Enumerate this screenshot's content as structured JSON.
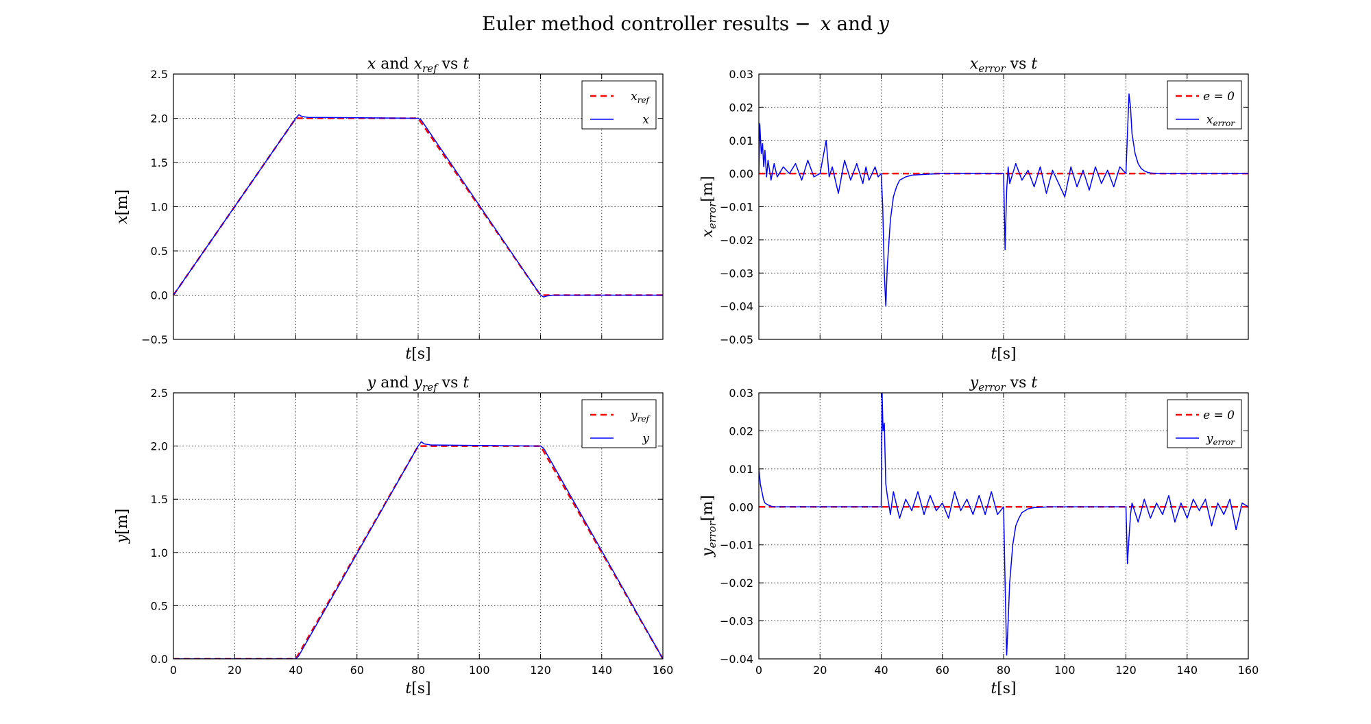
{
  "figure": {
    "suptitle_main": "Euler method controller results",
    "suptitle_dash": "−",
    "suptitle_var1": "x",
    "suptitle_and": "and",
    "suptitle_var2": "y"
  },
  "chart_data": [
    {
      "type": "line",
      "title": "x and x_ref vs t",
      "title_parts": {
        "v1": "x",
        "mid": "and",
        "v2": "x",
        "sub": "ref",
        "vs": "vs",
        "t": "t"
      },
      "xlabel": "t[s]",
      "xlabel_var": "t",
      "xlabel_unit": "[s]",
      "ylabel": "x[m]",
      "ylabel_var": "x",
      "ylabel_sub": "",
      "ylabel_unit": "[m]",
      "xlim": [
        0,
        160
      ],
      "ylim": [
        -0.5,
        2.5
      ],
      "xticks": [
        0,
        20,
        40,
        60,
        80,
        100,
        120,
        140,
        160
      ],
      "show_xticklabels": false,
      "yticks": [
        -0.5,
        0.0,
        0.5,
        1.0,
        1.5,
        2.0,
        2.5
      ],
      "ytick_labels": [
        "−0.5",
        "0.0",
        "0.5",
        "1.0",
        "1.5",
        "2.0",
        "2.5"
      ],
      "grid": true,
      "legend": "top-right",
      "series": [
        {
          "name": "x_ref",
          "legend_var": "x",
          "legend_sub": "ref",
          "style": "dashed",
          "color": "#ff0000",
          "x": [
            0,
            40,
            80,
            120,
            160
          ],
          "y": [
            0,
            2,
            2,
            0,
            0
          ]
        },
        {
          "name": "x",
          "legend_var": "x",
          "legend_sub": "",
          "style": "solid",
          "color": "#0000ff",
          "x": [
            0,
            40,
            41,
            42,
            44,
            80,
            81,
            120,
            121,
            122,
            124,
            160
          ],
          "y": [
            0,
            2.0,
            2.04,
            2.02,
            2.01,
            2.0,
            1.98,
            0.0,
            -0.02,
            -0.01,
            0.0,
            0.0
          ]
        }
      ]
    },
    {
      "type": "line",
      "title": "x_error vs t",
      "title_parts": {
        "v1": "x",
        "sub": "error",
        "vs": "vs",
        "t": "t"
      },
      "xlabel": "t[s]",
      "xlabel_var": "t",
      "xlabel_unit": "[s]",
      "ylabel": "x_error[m]",
      "ylabel_var": "x",
      "ylabel_sub": "error",
      "ylabel_unit": "[m]",
      "xlim": [
        0,
        160
      ],
      "ylim": [
        -0.05,
        0.03
      ],
      "xticks": [
        0,
        20,
        40,
        60,
        80,
        100,
        120,
        140,
        160
      ],
      "show_xticklabels": false,
      "yticks": [
        -0.05,
        -0.04,
        -0.03,
        -0.02,
        -0.01,
        0.0,
        0.01,
        0.02,
        0.03
      ],
      "ytick_labels": [
        "−0.05",
        "−0.04",
        "−0.03",
        "−0.02",
        "−0.01",
        "0.00",
        "0.01",
        "0.02",
        "0.03"
      ],
      "grid": true,
      "legend": "top-right",
      "series": [
        {
          "name": "e=0",
          "legend_var": "e = 0",
          "legend_sub": "",
          "style": "dashed",
          "color": "#ff0000",
          "x": [
            0,
            160
          ],
          "y": [
            0,
            0
          ]
        },
        {
          "name": "x_error",
          "legend_var": "x",
          "legend_sub": "error",
          "style": "solid",
          "color": "#0000ff",
          "x": [
            0,
            0.3,
            0.8,
            1.2,
            1.6,
            2.0,
            2.5,
            3,
            4,
            5,
            6,
            8,
            10,
            12,
            14,
            16,
            18,
            20,
            22,
            23,
            24,
            26,
            28,
            30,
            32,
            34,
            35,
            36,
            38,
            39,
            40,
            40.5,
            41,
            41.5,
            42,
            43,
            44,
            45,
            46,
            48,
            50,
            55,
            60,
            70,
            80,
            80.5,
            81,
            81.5,
            82,
            84,
            86,
            88,
            90,
            92,
            94,
            96,
            98,
            100,
            102,
            104,
            106,
            108,
            110,
            112,
            114,
            116,
            118,
            120,
            120.5,
            121,
            121.5,
            122,
            123,
            124,
            125,
            126,
            127,
            128,
            130,
            135,
            140,
            160
          ],
          "y": [
            0.0,
            0.015,
            0.006,
            0.009,
            0.002,
            0.007,
            -0.001,
            0.004,
            -0.002,
            0.003,
            -0.001,
            0.002,
            0.0,
            0.003,
            -0.002,
            0.004,
            -0.001,
            0.0,
            0.01,
            -0.001,
            0.002,
            -0.006,
            0.004,
            -0.002,
            0.003,
            -0.003,
            0.002,
            -0.002,
            0.002,
            -0.001,
            0.0,
            -0.01,
            -0.03,
            -0.04,
            -0.028,
            -0.014,
            -0.007,
            -0.004,
            -0.002,
            -0.001,
            -0.0005,
            -0.0002,
            0.0,
            0.0,
            0.0,
            -0.023,
            -0.005,
            0.002,
            -0.003,
            0.003,
            -0.002,
            0.001,
            -0.004,
            0.002,
            -0.006,
            0.001,
            -0.003,
            -0.007,
            0.002,
            -0.004,
            0.001,
            -0.005,
            0.002,
            -0.003,
            0.001,
            -0.004,
            0.002,
            0.0,
            0.012,
            0.024,
            0.02,
            0.012,
            0.006,
            0.003,
            0.0015,
            0.0008,
            0.0004,
            0.0002,
            0.0,
            0.0,
            0.0,
            0.0
          ]
        }
      ]
    },
    {
      "type": "line",
      "title": "y and y_ref vs t",
      "title_parts": {
        "v1": "y",
        "mid": "and",
        "v2": "y",
        "sub": "ref",
        "vs": "vs",
        "t": "t"
      },
      "xlabel": "t[s]",
      "xlabel_var": "t",
      "xlabel_unit": "[s]",
      "ylabel": "y[m]",
      "ylabel_var": "y",
      "ylabel_sub": "",
      "ylabel_unit": "[m]",
      "xlim": [
        0,
        160
      ],
      "ylim": [
        0.0,
        2.5
      ],
      "xticks": [
        0,
        20,
        40,
        60,
        80,
        100,
        120,
        140,
        160
      ],
      "show_xticklabels": true,
      "xtick_labels": [
        "0",
        "20",
        "40",
        "60",
        "80",
        "100",
        "120",
        "140",
        "160"
      ],
      "yticks": [
        0.0,
        0.5,
        1.0,
        1.5,
        2.0,
        2.5
      ],
      "ytick_labels": [
        "0.0",
        "0.5",
        "1.0",
        "1.5",
        "2.0",
        "2.5"
      ],
      "grid": true,
      "legend": "top-right",
      "series": [
        {
          "name": "y_ref",
          "legend_var": "y",
          "legend_sub": "ref",
          "style": "dashed",
          "color": "#ff0000",
          "x": [
            0,
            40,
            80,
            120,
            160
          ],
          "y": [
            0,
            0,
            2,
            2,
            0
          ]
        },
        {
          "name": "y",
          "legend_var": "y",
          "legend_sub": "",
          "style": "solid",
          "color": "#0000ff",
          "x": [
            0,
            40,
            41,
            80,
            81,
            82,
            84,
            120,
            121,
            160
          ],
          "y": [
            0,
            0,
            0.03,
            2.0,
            2.04,
            2.02,
            2.01,
            2.0,
            1.98,
            0.0
          ]
        }
      ]
    },
    {
      "type": "line",
      "title": "y_error vs t",
      "title_parts": {
        "v1": "y",
        "sub": "error",
        "vs": "vs",
        "t": "t"
      },
      "xlabel": "t[s]",
      "xlabel_var": "t",
      "xlabel_unit": "[s]",
      "ylabel": "y_error[m]",
      "ylabel_var": "y",
      "ylabel_sub": "error",
      "ylabel_unit": "[m]",
      "xlim": [
        0,
        160
      ],
      "ylim": [
        -0.04,
        0.03
      ],
      "xticks": [
        0,
        20,
        40,
        60,
        80,
        100,
        120,
        140,
        160
      ],
      "show_xticklabels": true,
      "xtick_labels": [
        "0",
        "20",
        "40",
        "60",
        "80",
        "100",
        "120",
        "140",
        "160"
      ],
      "yticks": [
        -0.04,
        -0.03,
        -0.02,
        -0.01,
        0.0,
        0.01,
        0.02,
        0.03
      ],
      "ytick_labels": [
        "−0.04",
        "−0.03",
        "−0.02",
        "−0.01",
        "0.00",
        "0.01",
        "0.02",
        "0.03"
      ],
      "grid": true,
      "legend": "top-right",
      "series": [
        {
          "name": "e=0",
          "legend_var": "e = 0",
          "legend_sub": "",
          "style": "dashed",
          "color": "#ff0000",
          "x": [
            0,
            160
          ],
          "y": [
            0,
            0
          ]
        },
        {
          "name": "y_error",
          "legend_var": "y",
          "legend_sub": "error",
          "style": "solid",
          "color": "#0000ff",
          "x": [
            0,
            0.5,
            1,
            1.5,
            2,
            3,
            4,
            5,
            6,
            8,
            10,
            20,
            30,
            40,
            40.3,
            40.6,
            41,
            41.5,
            42,
            43,
            44,
            46,
            48,
            50,
            52,
            54,
            56,
            58,
            60,
            62,
            64,
            66,
            68,
            70,
            72,
            74,
            76,
            78,
            80,
            80.5,
            81,
            81.5,
            82,
            83,
            84,
            85,
            86,
            88,
            90,
            95,
            100,
            110,
            120,
            120.5,
            121,
            121.5,
            122,
            124,
            126,
            128,
            130,
            132,
            134,
            136,
            138,
            140,
            142,
            144,
            146,
            148,
            150,
            152,
            154,
            156,
            158,
            160
          ],
          "y": [
            0.01,
            0.006,
            0.004,
            0.002,
            0.001,
            0.0005,
            0.0002,
            0.0,
            0.0,
            0.0,
            0.0,
            0.0,
            0.0,
            0.0,
            0.03,
            0.02,
            0.022,
            0.006,
            0.003,
            -0.002,
            0.004,
            -0.003,
            0.002,
            -0.001,
            0.004,
            -0.002,
            0.003,
            -0.001,
            0.001,
            -0.003,
            0.004,
            -0.001,
            0.002,
            -0.002,
            0.003,
            -0.002,
            0.004,
            -0.002,
            0.0,
            -0.02,
            -0.039,
            -0.03,
            -0.02,
            -0.01,
            -0.005,
            -0.003,
            -0.0015,
            -0.0005,
            -0.0002,
            0.0,
            0.0,
            0.0,
            0.0,
            -0.015,
            -0.008,
            -0.002,
            0.001,
            -0.004,
            0.002,
            -0.003,
            0.001,
            -0.002,
            0.003,
            -0.004,
            0.001,
            -0.003,
            0.002,
            -0.001,
            0.002,
            -0.005,
            0.001,
            -0.002,
            0.002,
            -0.006,
            0.001,
            0.0
          ]
        }
      ]
    }
  ]
}
